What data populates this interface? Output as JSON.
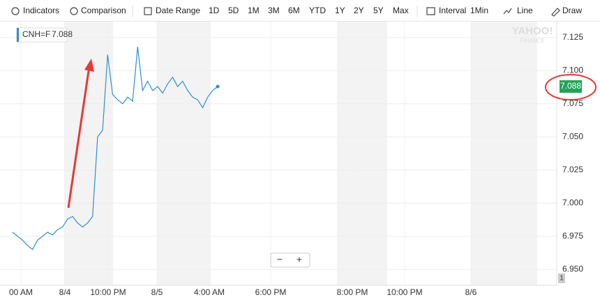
{
  "toolbar": [
    "Indicators",
    "Comparison",
    "Date Range",
    "1D",
    "5D",
    "1M",
    "3M",
    "6M",
    "YTD",
    "1Y",
    "2Y",
    "5Y",
    "Max",
    "Interval",
    "1Min",
    "Line",
    "Draw"
  ],
  "watermark": [
    "YAHOO!",
    "FINANCE"
  ],
  "zoom": [
    "−",
    "+"
  ],
  "badge": "1",
  "chart_data": {
    "type": "line",
    "tooltip": {
      "symbol": "CNH=F",
      "price": "7.088"
    },
    "last_price": 7.088,
    "xtick_labels": [
      "00 AM",
      "8/4",
      "10:00 PM",
      "8/5",
      "4:00 AM",
      "6:00 PM",
      "8:00 PM",
      "10:00 PM",
      "8/6"
    ],
    "color": "#2f8fd0",
    "values": [
      6.978,
      6.975,
      6.972,
      6.968,
      6.965,
      6.972,
      6.975,
      6.978,
      6.976,
      6.98,
      6.982,
      6.988,
      6.99,
      6.985,
      6.982,
      6.985,
      6.99,
      7.05,
      7.055,
      7.112,
      7.082,
      7.078,
      7.075,
      7.08,
      7.077,
      7.118,
      7.085,
      7.092,
      7.085,
      7.088,
      7.083,
      7.09,
      7.095,
      7.088,
      7.092,
      7.085,
      7.08,
      7.078,
      7.072,
      7.08,
      7.085,
      7.088
    ],
    "ylim": [
      6.938,
      7.137
    ],
    "yticks": [
      {
        "value": 6.95,
        "label": "6.950"
      },
      6.975,
      {
        "value": 7.0,
        "label": "7.000"
      },
      7.025,
      {
        "value": 7.05,
        "label": "7.050"
      },
      7.075,
      {
        "value": 7.1,
        "label": "7.100"
      },
      7.125
    ],
    "grid": true
  }
}
